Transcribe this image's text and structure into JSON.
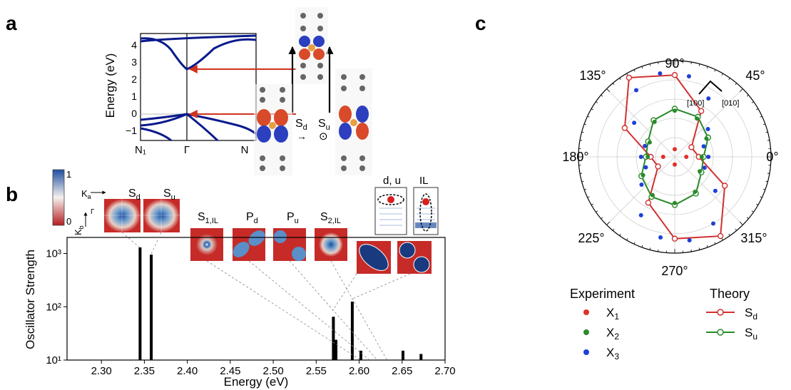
{
  "panels": {
    "a": {
      "letter": "a",
      "ylabel": "Energy (eV)",
      "yticks": [
        "4",
        "3",
        "2",
        "1",
        "0",
        "−1"
      ],
      "kpoints": [
        "N₁",
        "Γ",
        "N"
      ],
      "label_sd": "S",
      "label_sd_sub": "d",
      "label_su": "S",
      "label_su_sub": "u",
      "arrow_glyph": "→",
      "odot_glyph": "⊙",
      "colors": {
        "band": "#0a1a8c",
        "arrow": "#d0321e"
      }
    },
    "b": {
      "letter": "b",
      "colorbar_ticks": [
        "1",
        "0"
      ],
      "ka_label": "K",
      "ka_sub": "a",
      "kb_label": "K",
      "kb_sub": "b",
      "gamma": "Γ",
      "map_labels": [
        {
          "main": "S",
          "sub": "d"
        },
        {
          "main": "S",
          "sub": "u"
        },
        {
          "main": "S",
          "sub": "1,IL"
        },
        {
          "main": "P",
          "sub": "d"
        },
        {
          "main": "P",
          "sub": "u"
        },
        {
          "main": "S",
          "sub": "2,IL"
        }
      ],
      "schematic_labels": [
        "d, u",
        "IL"
      ]
    },
    "c": {
      "letter": "c",
      "angle_labels": [
        "90°",
        "45°",
        "0°",
        "315°",
        "270°",
        "225°",
        "180°",
        "135°"
      ],
      "crystal_axes": [
        "[100]",
        "[010]"
      ],
      "legend": {
        "experiment_title": "Experiment",
        "theory_title": "Theory",
        "experiment": [
          {
            "main": "X",
            "sub": "1",
            "color": "#e0302a"
          },
          {
            "main": "X",
            "sub": "2",
            "color": "#2a8a2a"
          },
          {
            "main": "X",
            "sub": "3",
            "color": "#1f3fd8"
          }
        ],
        "theory": [
          {
            "main": "S",
            "sub": "d",
            "color": "#d03030"
          },
          {
            "main": "S",
            "sub": "u",
            "color": "#2a8a2a"
          }
        ]
      }
    }
  },
  "chart_data": [
    {
      "type": "bar",
      "panel": "b",
      "xlabel": "Energy (eV)",
      "ylabel": "Oscillator Strength",
      "yscale": "log",
      "xlim": [
        2.26,
        2.7
      ],
      "ylim": [
        10,
        2000
      ],
      "xticks": [
        "2.30",
        "2.35",
        "2.40",
        "2.45",
        "2.50",
        "2.55",
        "2.60",
        "2.65",
        "2.70"
      ],
      "yticks": [
        "10¹",
        "10²",
        "10³"
      ],
      "x": [
        2.345,
        2.358,
        2.57,
        2.573,
        2.592,
        2.602,
        2.651,
        2.672
      ],
      "values": [
        1300,
        950,
        65,
        24,
        125,
        15,
        15,
        13
      ],
      "color": "#000000"
    },
    {
      "type": "scatter",
      "panel": "c",
      "coordinates": "polar",
      "series": [
        {
          "name": "X₁",
          "color": "#e0302a",
          "theta_deg": [
            0,
            90,
            180,
            270
          ],
          "r": [
            0.12,
            0.08,
            0.12,
            0.08
          ]
        },
        {
          "name": "X₂",
          "color": "#2a8a2a",
          "theta_deg": [
            0,
            30,
            60,
            90,
            120,
            150,
            180,
            210,
            240,
            270,
            300,
            330
          ],
          "r": [
            0.28,
            0.38,
            0.46,
            0.48,
            0.42,
            0.3,
            0.28,
            0.38,
            0.46,
            0.48,
            0.42,
            0.3
          ]
        },
        {
          "name": "X₃",
          "color": "#1f3fd8",
          "theta_deg": [
            0,
            20,
            40,
            60,
            80,
            100,
            120,
            140,
            160,
            180,
            200,
            220,
            240,
            260,
            280,
            300,
            320,
            340
          ],
          "r": [
            0.35,
            0.32,
            0.45,
            0.7,
            0.85,
            0.88,
            0.8,
            0.55,
            0.33,
            0.35,
            0.32,
            0.45,
            0.7,
            0.85,
            0.88,
            0.8,
            0.55,
            0.33
          ]
        },
        {
          "name": "Sₐ",
          "color": "#d03030",
          "theta_deg": [
            0,
            30,
            60,
            90,
            120,
            150,
            180,
            210,
            240,
            270,
            300,
            330
          ],
          "r": [
            0.25,
            0.2,
            0.55,
            0.85,
            0.95,
            0.6,
            0.25,
            0.2,
            0.55,
            0.85,
            0.95,
            0.6
          ]
        },
        {
          "name": "Sᵤ",
          "color": "#2a8a2a",
          "theta_deg": [
            0,
            30,
            60,
            90,
            120,
            150,
            180,
            210,
            240,
            270,
            300,
            330
          ],
          "r": [
            0.3,
            0.4,
            0.48,
            0.5,
            0.44,
            0.32,
            0.3,
            0.4,
            0.48,
            0.5,
            0.44,
            0.32
          ]
        }
      ]
    }
  ]
}
